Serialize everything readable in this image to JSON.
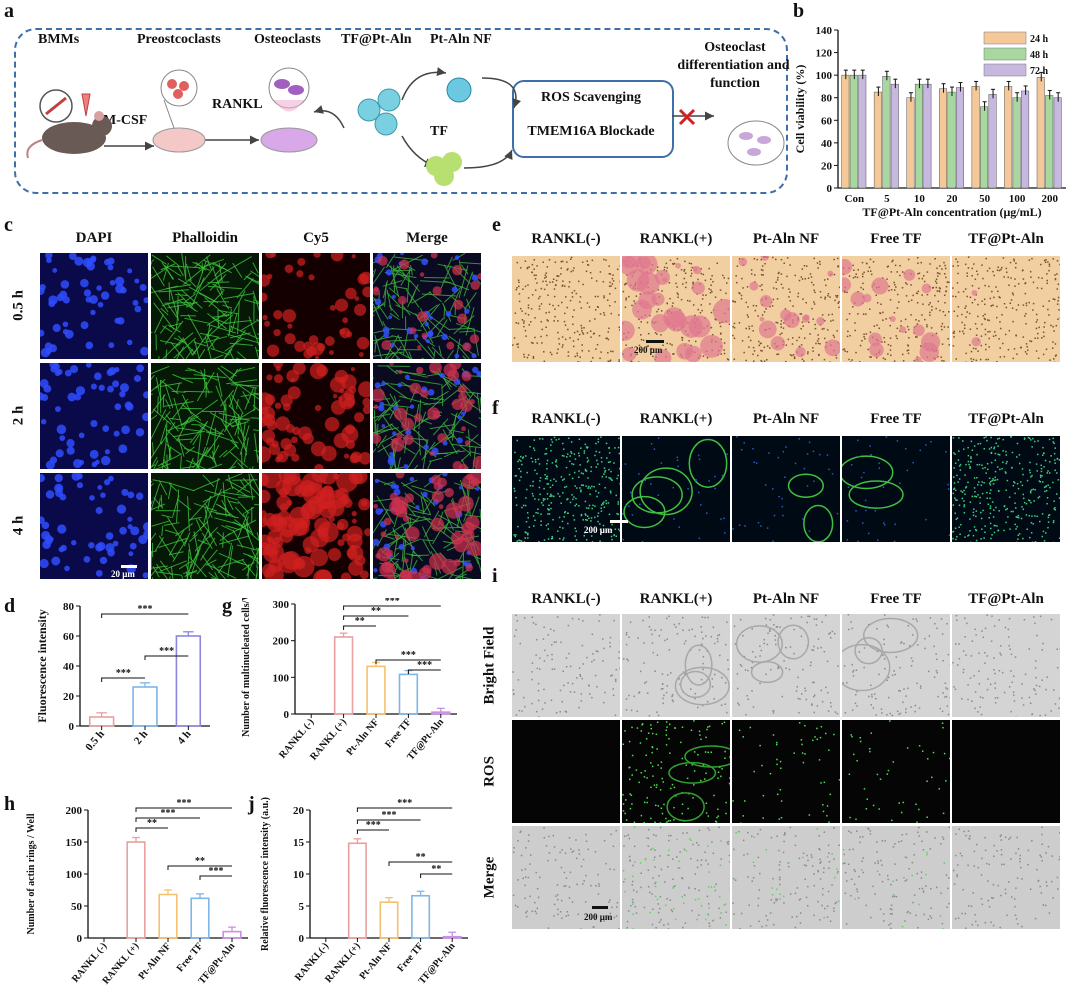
{
  "panel_labels": {
    "a": "a",
    "b": "b",
    "c": "c",
    "d": "d",
    "e": "e",
    "f": "f",
    "g": "g",
    "h": "h",
    "i": "i",
    "j": "j"
  },
  "schematic": {
    "bmms": "BMMs",
    "preosteoclasts": "Preostcoclasts",
    "osteoclasts": "Osteoclasts",
    "tf_pt_aln": "TF@Pt-Aln",
    "pt_aln_nf": "Pt-Aln NF",
    "tf": "TF",
    "mcsf": "M-CSF",
    "rankl": "RANKL",
    "ros": "ROS Scavenging",
    "tmem": "TMEM16A Blockade",
    "outcome_line1": "Osteoclast",
    "outcome_line2": "differentiation and",
    "outcome_line3": "function"
  },
  "panel_c": {
    "columns": [
      "DAPI",
      "Phalloidin",
      "Cy5",
      "Merge"
    ],
    "rows": [
      "0.5 h",
      "2 h",
      "4 h"
    ],
    "scalebar": "20 μm"
  },
  "panel_e": {
    "columns": [
      "RANKL(-)",
      "RANKL(+)",
      "Pt-Aln NF",
      "Free TF",
      "TF@Pt-Aln"
    ],
    "scalebar": "200 μm"
  },
  "panel_f": {
    "columns": [
      "RANKL(-)",
      "RANKL(+)",
      "Pt-Aln NF",
      "Free TF",
      "TF@Pt-Aln"
    ],
    "scalebar": "200 μm"
  },
  "panel_i": {
    "columns": [
      "RANKL(-)",
      "RANKL(+)",
      "Pt-Aln NF",
      "Free TF",
      "TF@Pt-Aln"
    ],
    "rows": [
      "Bright Field",
      "ROS",
      "Merge"
    ],
    "scalebar": "200 μm"
  },
  "chart_data": [
    {
      "id": "b",
      "type": "bar",
      "ylabel": "Cell viability (%)",
      "xlabel": "TF@Pt-Aln concentration (μg/mL)",
      "categories": [
        "Con",
        "5",
        "10",
        "20",
        "50",
        "100",
        "200"
      ],
      "ylim": [
        0,
        140
      ],
      "yticks": [
        0,
        20,
        40,
        60,
        80,
        100,
        120,
        140
      ],
      "legend_position": "top-right",
      "series": [
        {
          "name": "24 h",
          "color": "#f5c89a",
          "values": [
            100,
            85,
            80,
            88,
            90,
            90,
            98
          ]
        },
        {
          "name": "48 h",
          "color": "#a8d8a0",
          "values": [
            100,
            99,
            92,
            85,
            72,
            80,
            82
          ]
        },
        {
          "name": "72 h",
          "color": "#c7b8e0",
          "values": [
            100,
            92,
            92,
            89,
            83,
            86,
            80
          ]
        }
      ]
    },
    {
      "id": "d",
      "type": "bar",
      "ylabel": "Fluorescence intensity",
      "categories": [
        "0.5 h",
        "2 h",
        "4 h"
      ],
      "values": [
        6,
        26,
        60
      ],
      "colors": [
        "#e8a0a0",
        "#7eb6e8",
        "#8c86e0"
      ],
      "ylim": [
        0,
        80
      ],
      "yticks": [
        0,
        20,
        40,
        60,
        80
      ],
      "sig": [
        {
          "from": 0,
          "to": 1,
          "label": "***"
        },
        {
          "from": 1,
          "to": 2,
          "label": "***"
        },
        {
          "from": 0,
          "to": 2,
          "label": "***"
        }
      ]
    },
    {
      "id": "g",
      "type": "bar",
      "ylabel": "Number of multinucleated cells/Well",
      "categories": [
        "RANKL (-)",
        "RANKL (+)",
        "Pt-Aln NF",
        "Free TF",
        "TF@Pt-Aln"
      ],
      "values": [
        0,
        210,
        130,
        108,
        5
      ],
      "colors": [
        "#e8a0a0",
        "#e8a0a0",
        "#f5c070",
        "#7eb6e8",
        "#c890e0"
      ],
      "ylim": [
        0,
        300
      ],
      "yticks": [
        0,
        100,
        200,
        300
      ],
      "sig": [
        {
          "from": 1,
          "to": 2,
          "label": "**"
        },
        {
          "from": 1,
          "to": 3,
          "label": "**"
        },
        {
          "from": 1,
          "to": 4,
          "label": "***"
        },
        {
          "from": 2,
          "to": 4,
          "label": "***"
        },
        {
          "from": 3,
          "to": 4,
          "label": "***"
        }
      ]
    },
    {
      "id": "h",
      "type": "bar",
      "ylabel": "Number of actin rings / Well",
      "categories": [
        "RANKL (-)",
        "RANKL (+)",
        "Pt-Aln NF",
        "Free TF",
        "TF@Pt-Aln"
      ],
      "values": [
        0,
        150,
        68,
        62,
        10
      ],
      "colors": [
        "#e8a0a0",
        "#e8a0a0",
        "#f5c070",
        "#7eb6e8",
        "#c890e0"
      ],
      "ylim": [
        0,
        200
      ],
      "yticks": [
        0,
        50,
        100,
        150,
        200
      ],
      "sig": [
        {
          "from": 1,
          "to": 2,
          "label": "**"
        },
        {
          "from": 1,
          "to": 3,
          "label": "***"
        },
        {
          "from": 1,
          "to": 4,
          "label": "***"
        },
        {
          "from": 2,
          "to": 4,
          "label": "**"
        },
        {
          "from": 3,
          "to": 4,
          "label": "***"
        }
      ]
    },
    {
      "id": "j",
      "type": "bar",
      "ylabel": "Relative fluorescence intensity (a.u.)",
      "categories": [
        "RANKL(-)",
        "RANKL(+)",
        "Pt-Aln NF",
        "Free TF",
        "TF@Pt-Aln"
      ],
      "values": [
        0,
        14.8,
        5.6,
        6.6,
        0.2
      ],
      "colors": [
        "#e8a0a0",
        "#e8a0a0",
        "#f5c070",
        "#7eb6e8",
        "#c890e0"
      ],
      "ylim": [
        0,
        20
      ],
      "yticks": [
        0,
        5,
        10,
        15,
        20
      ],
      "sig": [
        {
          "from": 1,
          "to": 2,
          "label": "***"
        },
        {
          "from": 1,
          "to": 3,
          "label": "***"
        },
        {
          "from": 1,
          "to": 4,
          "label": "***"
        },
        {
          "from": 2,
          "to": 4,
          "label": "**"
        },
        {
          "from": 3,
          "to": 4,
          "label": "**"
        }
      ]
    }
  ]
}
